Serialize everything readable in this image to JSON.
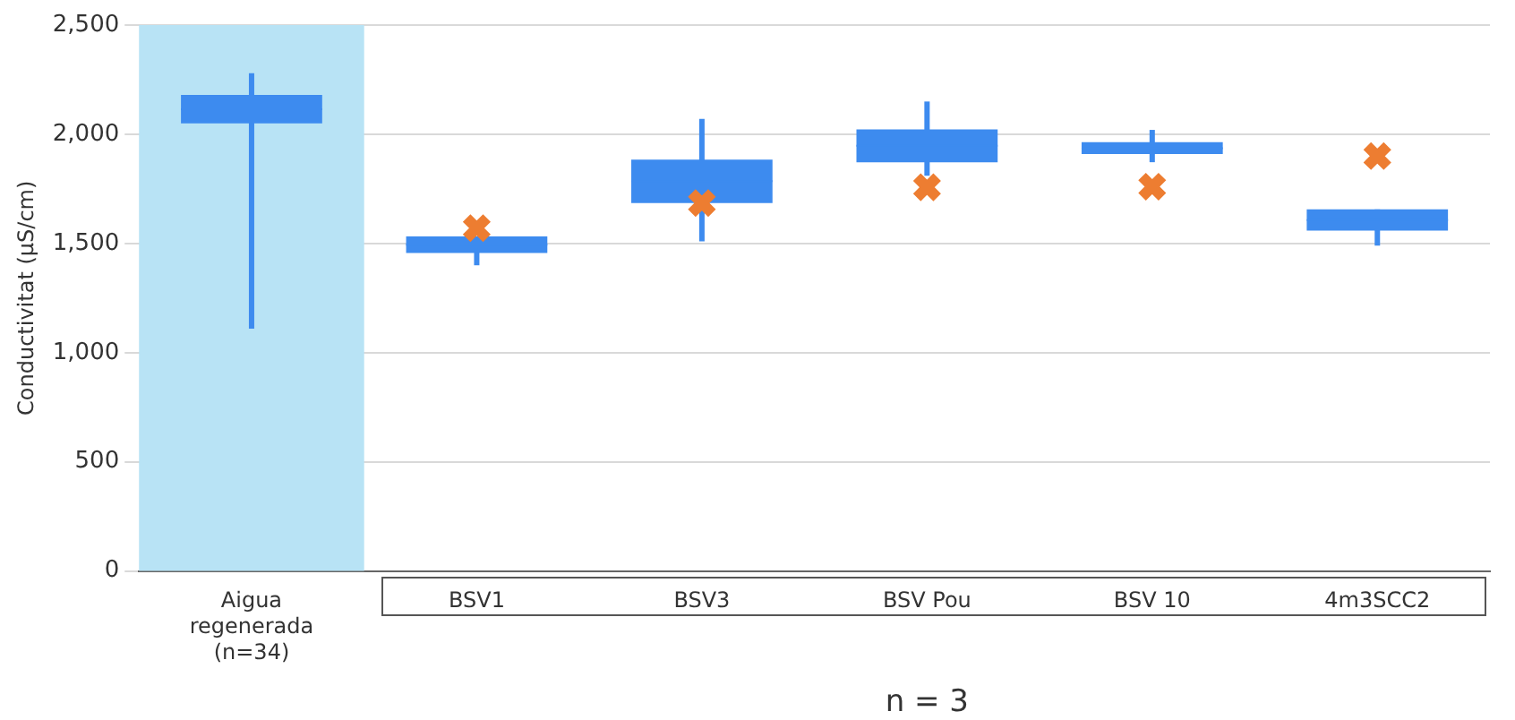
{
  "chart_data": {
    "type": "box",
    "ylabel": "Conductivitat (µS/cm)",
    "categories": [
      "Aigua regenerada (n=34)",
      "BSV1",
      "BSV3",
      "BSV Pou",
      "BSV 10",
      "4m3SCC2"
    ],
    "series": [
      {
        "color": "#3d8bef",
        "boxes": [
          {
            "low": 1110,
            "q1": 2050,
            "median": 2115,
            "q3": 2180,
            "high": 2280
          },
          {
            "low": 1400,
            "q1": 1456,
            "median": 1494,
            "q3": 1532,
            "high": 1532
          },
          {
            "low": 1510,
            "q1": 1685,
            "median": 1785,
            "q3": 1884,
            "high": 2070
          },
          {
            "low": 1810,
            "q1": 1872,
            "median": 1947,
            "q3": 2022,
            "high": 2150
          },
          {
            "low": 1872,
            "q1": 1909,
            "median": 1936,
            "q3": 1964,
            "high": 2020
          },
          {
            "low": 1490,
            "q1": 1559,
            "median": 1607,
            "q3": 1656,
            "high": 1656
          }
        ]
      },
      {
        "type": "scatter",
        "color": "#ed7d31",
        "marker": "cross",
        "x": [
          "BSV1",
          "BSV3",
          "BSV Pou",
          "BSV 10",
          "4m3SCC2"
        ],
        "values": [
          1570,
          1685,
          1757,
          1760,
          1900
        ]
      }
    ],
    "ylim": [
      0,
      2500
    ],
    "yticks": [
      0,
      500,
      {
        "value": 1000,
        "label": "1,000"
      },
      {
        "value": 1500,
        "label": "1,500"
      },
      {
        "value": 2000,
        "label": "2,000"
      },
      {
        "value": 2500,
        "label": "2,500"
      }
    ],
    "grid": "y",
    "legend": false,
    "bands": [
      {
        "axis": "x",
        "from": "Aigua regenerada (n=34)",
        "to": "Aigua regenerada (n=34)",
        "color": "#b8e3f5"
      }
    ],
    "annotations": [
      "n = 3"
    ]
  }
}
